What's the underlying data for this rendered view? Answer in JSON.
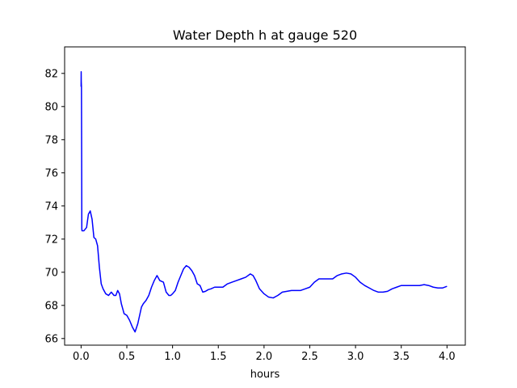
{
  "chart_data": {
    "type": "line",
    "title": "Water Depth h at gauge 520",
    "xlabel": "hours",
    "ylabel": "",
    "xlim": [
      -0.18,
      4.2
    ],
    "ylim": [
      65.6,
      83.6
    ],
    "xticks": [
      0.0,
      0.5,
      1.0,
      1.5,
      2.0,
      2.5,
      3.0,
      3.5,
      4.0
    ],
    "xtick_labels": [
      "0.0",
      "0.5",
      "1.0",
      "1.5",
      "2.0",
      "2.5",
      "3.0",
      "3.5",
      "4.0"
    ],
    "yticks": [
      66,
      68,
      70,
      72,
      74,
      76,
      78,
      80,
      82
    ],
    "ytick_labels": [
      "66",
      "68",
      "70",
      "72",
      "74",
      "76",
      "78",
      "80",
      "82"
    ],
    "grid": false,
    "series": [
      {
        "color": "#0000ff",
        "x": [
          0.0,
          0.001,
          0.002,
          0.004,
          0.006,
          0.008,
          0.01,
          0.03,
          0.06,
          0.08,
          0.1,
          0.12,
          0.14,
          0.16,
          0.18,
          0.2,
          0.22,
          0.24,
          0.27,
          0.3,
          0.33,
          0.36,
          0.38,
          0.4,
          0.42,
          0.44,
          0.47,
          0.5,
          0.53,
          0.56,
          0.59,
          0.62,
          0.64,
          0.66,
          0.68,
          0.71,
          0.74,
          0.77,
          0.8,
          0.83,
          0.86,
          0.88,
          0.9,
          0.93,
          0.96,
          0.98,
          1.0,
          1.03,
          1.06,
          1.09,
          1.12,
          1.15,
          1.18,
          1.21,
          1.24,
          1.27,
          1.3,
          1.33,
          1.36,
          1.39,
          1.42,
          1.46,
          1.5,
          1.55,
          1.6,
          1.65,
          1.7,
          1.75,
          1.8,
          1.85,
          1.88,
          1.91,
          1.95,
          2.0,
          2.05,
          2.1,
          2.15,
          2.2,
          2.3,
          2.4,
          2.45,
          2.5,
          2.55,
          2.6,
          2.65,
          2.7,
          2.75,
          2.8,
          2.85,
          2.9,
          2.95,
          3.0,
          3.05,
          3.1,
          3.15,
          3.2,
          3.25,
          3.3,
          3.35,
          3.4,
          3.45,
          3.5,
          3.55,
          3.6,
          3.65,
          3.7,
          3.75,
          3.8,
          3.85,
          3.9,
          3.95,
          4.0
        ],
        "y": [
          81.2,
          82.1,
          81.5,
          81.2,
          77.5,
          72.6,
          72.5,
          72.5,
          72.7,
          73.5,
          73.7,
          73.2,
          72.1,
          72.0,
          71.6,
          70.3,
          69.3,
          69.0,
          68.7,
          68.6,
          68.8,
          68.6,
          68.6,
          68.9,
          68.7,
          68.1,
          67.5,
          67.4,
          67.1,
          66.7,
          66.4,
          66.9,
          67.4,
          67.9,
          68.1,
          68.3,
          68.6,
          69.1,
          69.5,
          69.8,
          69.5,
          69.45,
          69.4,
          68.8,
          68.6,
          68.6,
          68.7,
          68.9,
          69.4,
          69.8,
          70.2,
          70.4,
          70.3,
          70.1,
          69.8,
          69.3,
          69.2,
          68.8,
          68.85,
          68.95,
          69.0,
          69.1,
          69.1,
          69.1,
          69.3,
          69.4,
          69.5,
          69.6,
          69.7,
          69.9,
          69.8,
          69.5,
          69.0,
          68.7,
          68.5,
          68.45,
          68.6,
          68.8,
          68.9,
          68.9,
          69.0,
          69.1,
          69.4,
          69.6,
          69.6,
          69.6,
          69.6,
          69.8,
          69.9,
          69.95,
          69.9,
          69.7,
          69.4,
          69.2,
          69.05,
          68.9,
          68.8,
          68.8,
          68.85,
          69.0,
          69.1,
          69.2,
          69.2,
          69.2,
          69.2,
          69.2,
          69.25,
          69.2,
          69.1,
          69.05,
          69.05,
          69.15
        ]
      }
    ]
  }
}
